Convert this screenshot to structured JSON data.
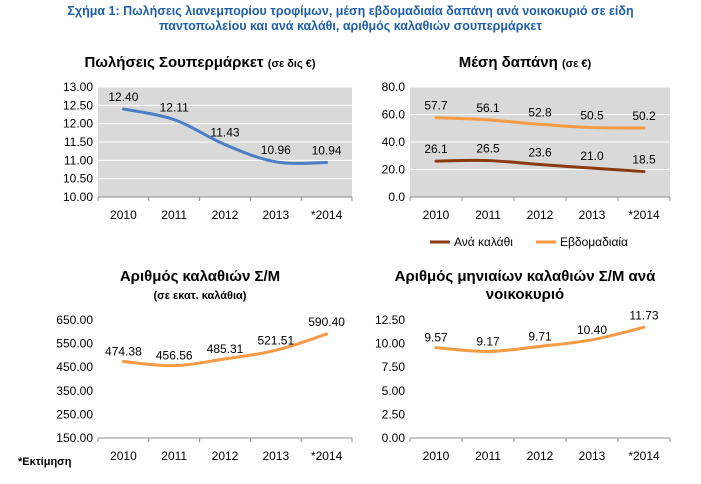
{
  "figure_title": {
    "line1": "Σχήμα 1: Πωλήσεις λιανεμπορίου τροφίμων, μέση εβδομαδιαία δαπάνη ανά νοικοκυριό σε είδη",
    "line2": "παντοπωλείου και ανά καλάθι, αριθμός καλαθιών σουπερμάρκετ"
  },
  "footnote": "*Εκτίμηση",
  "colors": {
    "blue": "#4a7ec6",
    "brown": "#8b3a0f",
    "orange": "#f59a45",
    "plot_bg": "#d9d9d9"
  },
  "chart_data": [
    {
      "id": "sales",
      "type": "line",
      "title": "Πωλήσεις Σουπερμάρκετ",
      "unit": "(σε δις €)",
      "categories": [
        "2010",
        "2011",
        "2012",
        "2013",
        "*2014"
      ],
      "series": [
        {
          "values": [
            12.4,
            12.11,
            11.43,
            10.96,
            10.94
          ],
          "labels": [
            "12.40",
            "12.11",
            "11.43",
            "10.96",
            "10.94"
          ],
          "color": "blue"
        }
      ],
      "ylim": [
        10.0,
        13.0
      ],
      "yticks": [
        "10.00",
        "10.50",
        "11.00",
        "11.50",
        "12.00",
        "12.50",
        "13.00"
      ],
      "grid": true
    },
    {
      "id": "spend",
      "type": "line",
      "title": "Μέση δαπάνη",
      "unit": "(σε €)",
      "categories": [
        "2010",
        "2011",
        "2012",
        "2013",
        "*2014"
      ],
      "series": [
        {
          "name": "Ανά καλάθι",
          "values": [
            26.1,
            26.5,
            23.6,
            21.0,
            18.5
          ],
          "labels": [
            "26.1",
            "26.5",
            "23.6",
            "21.0",
            "18.5"
          ],
          "color": "brown"
        },
        {
          "name": "Εβδομαδιαία",
          "values": [
            57.7,
            56.1,
            52.8,
            50.5,
            50.2
          ],
          "labels": [
            "57.7",
            "56.1",
            "52.8",
            "50.5",
            "50.2"
          ],
          "color": "orange"
        }
      ],
      "ylim": [
        0.0,
        80.0
      ],
      "yticks": [
        "0.0",
        "20.0",
        "40.0",
        "60.0",
        "80.0"
      ],
      "grid": true,
      "legend": "bottom"
    },
    {
      "id": "baskets",
      "type": "line",
      "title": "Αριθμός καλαθιών Σ/Μ",
      "subtitle": "(σε εκατ. καλάθια)",
      "categories": [
        "2010",
        "2011",
        "2012",
        "2013",
        "*2014"
      ],
      "series": [
        {
          "values": [
            474.38,
            456.56,
            485.31,
            521.51,
            590.4
          ],
          "labels": [
            "474.38",
            "456.56",
            "485.31",
            "521.51",
            "590.40"
          ],
          "color": "orange"
        }
      ],
      "ylim": [
        150.0,
        650.0
      ],
      "yticks": [
        "150.00",
        "250.00",
        "350.00",
        "450.00",
        "550.00",
        "650.00"
      ],
      "grid": false
    },
    {
      "id": "monthly",
      "type": "line",
      "title": "Αριθμός μηνιαίων καλαθιών Σ/Μ ανά",
      "title_line2": "νοικοκυριό",
      "categories": [
        "2010",
        "2011",
        "2012",
        "2013",
        "*2014"
      ],
      "series": [
        {
          "values": [
            9.57,
            9.17,
            9.71,
            10.4,
            11.73
          ],
          "labels": [
            "9.57",
            "9.17",
            "9.71",
            "10.40",
            "11.73"
          ],
          "color": "orange"
        }
      ],
      "ylim": [
        0.0,
        12.5
      ],
      "yticks": [
        "0.00",
        "2.50",
        "5.00",
        "7.50",
        "10.00",
        "12.50"
      ],
      "grid": false
    }
  ]
}
